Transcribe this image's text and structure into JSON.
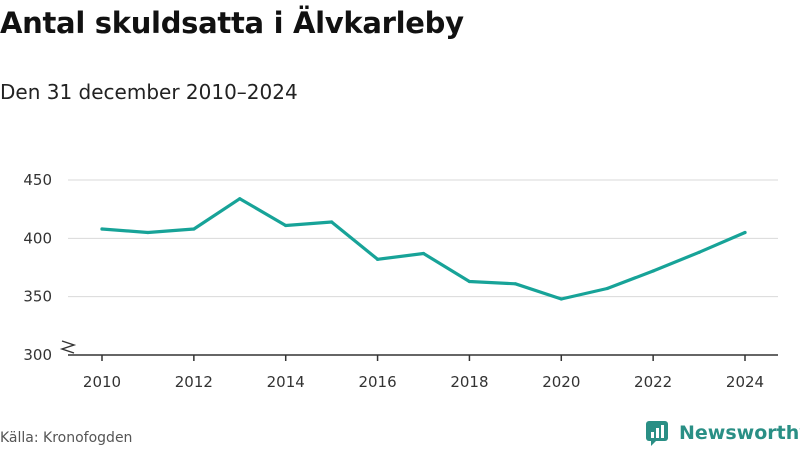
{
  "title": "Antal skuldsatta i Älvkarleby",
  "subtitle": "Den 31 december 2010–2024",
  "source": "Källa: Kronofogden",
  "brand": {
    "name": "Newsworthy",
    "icon": "newsworthy-logo-icon",
    "color": "#2a8f85"
  },
  "colors": {
    "line": "#17a398",
    "grid": "#d9d9d9",
    "axis": "#333333"
  },
  "chart_data": {
    "type": "line",
    "title": "Antal skuldsatta i Älvkarleby",
    "subtitle": "Den 31 december 2010–2024",
    "xlabel": "",
    "ylabel": "",
    "x": [
      2010,
      2011,
      2012,
      2013,
      2014,
      2015,
      2016,
      2017,
      2018,
      2019,
      2020,
      2021,
      2022,
      2023,
      2024
    ],
    "series": [
      {
        "values": [
          408,
          405,
          408,
          434,
          411,
          414,
          382,
          387,
          363,
          361,
          348,
          357,
          372,
          388,
          405
        ]
      }
    ],
    "xticks": [
      "2010",
      "2012",
      "2014",
      "2016",
      "2018",
      "2020",
      "2022",
      "2024"
    ],
    "yticks": [
      "300",
      "350",
      "400",
      "450"
    ],
    "ylim": [
      300,
      450
    ],
    "xlim": [
      2010,
      2024
    ],
    "grid": true,
    "axis_break": true,
    "legend": "none"
  }
}
